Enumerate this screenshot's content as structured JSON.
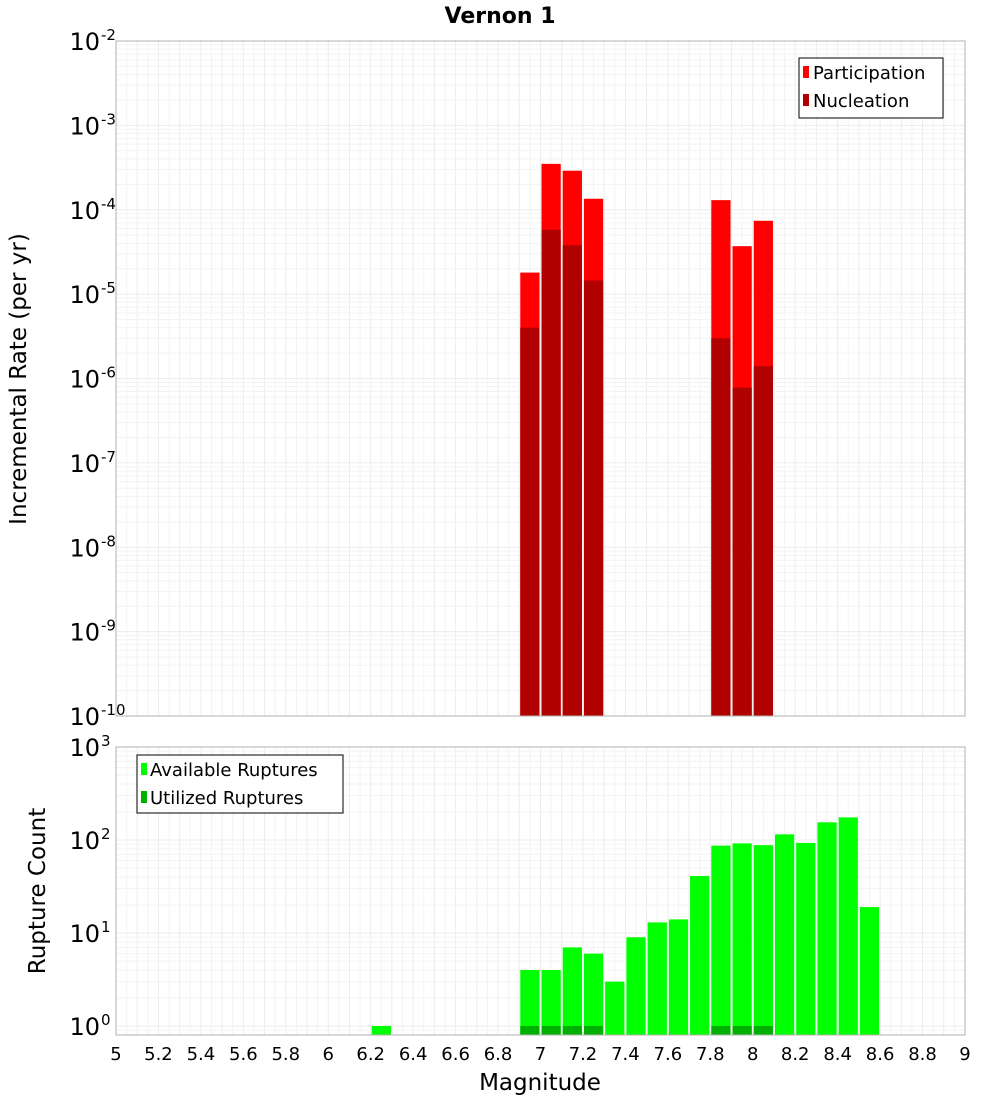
{
  "chart_data": [
    {
      "type": "bar",
      "title": "Vernon 1",
      "xlabel": "Magnitude",
      "ylabel": "Incremental Rate (per yr)",
      "xlim": [
        5,
        9
      ],
      "ylim": [
        1e-10,
        0.01
      ],
      "yscale": "log",
      "bin_width": 0.1,
      "grid": true,
      "legend_position": "top-right",
      "series": [
        {
          "name": "Participation",
          "color": "#ff0000",
          "x": [
            6.95,
            7.05,
            7.15,
            7.25,
            7.85,
            7.95,
            8.05
          ],
          "values": [
            1.8e-05,
            0.00035,
            0.00029,
            0.000135,
            0.00013,
            3.7e-05,
            7.4e-05
          ]
        },
        {
          "name": "Nucleation",
          "color": "#b00000",
          "x": [
            6.95,
            7.05,
            7.15,
            7.25,
            7.85,
            7.95,
            8.05
          ],
          "values": [
            4e-06,
            5.8e-05,
            3.8e-05,
            1.45e-05,
            3e-06,
            7.8e-07,
            1.4e-06
          ]
        }
      ],
      "yticks": [
        {
          "base": "10",
          "exp": "-2"
        },
        {
          "base": "10",
          "exp": "-3"
        },
        {
          "base": "10",
          "exp": "-4"
        },
        {
          "base": "10",
          "exp": "-5"
        },
        {
          "base": "10",
          "exp": "-6"
        },
        {
          "base": "10",
          "exp": "-7"
        },
        {
          "base": "10",
          "exp": "-8"
        },
        {
          "base": "10",
          "exp": "-9"
        },
        {
          "base": "10",
          "exp": "-10"
        }
      ]
    },
    {
      "type": "bar",
      "title": "",
      "xlabel": "Magnitude",
      "ylabel": "Rupture Count",
      "xlim": [
        5,
        9
      ],
      "ylim": [
        0.8,
        1000
      ],
      "yscale": "log",
      "bin_width": 0.1,
      "grid": true,
      "legend_position": "top-left",
      "series": [
        {
          "name": "Available Ruptures",
          "color": "#00ff00",
          "x": [
            6.25,
            6.95,
            7.05,
            7.15,
            7.25,
            7.35,
            7.45,
            7.55,
            7.65,
            7.75,
            7.85,
            7.95,
            8.05,
            8.15,
            8.25,
            8.35,
            8.45,
            8.55
          ],
          "values": [
            1,
            4,
            4,
            7,
            6,
            3,
            9,
            13,
            14,
            41,
            87,
            92,
            88,
            115,
            93,
            155,
            175,
            19
          ]
        },
        {
          "name": "Utilized Ruptures",
          "color": "#00b000",
          "x": [
            6.95,
            7.05,
            7.15,
            7.25,
            7.85,
            7.95,
            8.05
          ],
          "values": [
            1,
            1,
            1,
            1,
            1,
            1,
            1
          ]
        }
      ],
      "yticks": [
        {
          "base": "10",
          "exp": "3"
        },
        {
          "base": "10",
          "exp": "2"
        },
        {
          "base": "10",
          "exp": "1"
        },
        {
          "base": "10",
          "exp": "0"
        }
      ],
      "xticks": [
        "5",
        "5.2",
        "5.4",
        "5.6",
        "5.8",
        "6",
        "6.2",
        "6.4",
        "6.6",
        "6.8",
        "7",
        "7.2",
        "7.4",
        "7.6",
        "7.8",
        "8",
        "8.2",
        "8.4",
        "8.6",
        "8.8",
        "9"
      ]
    }
  ]
}
